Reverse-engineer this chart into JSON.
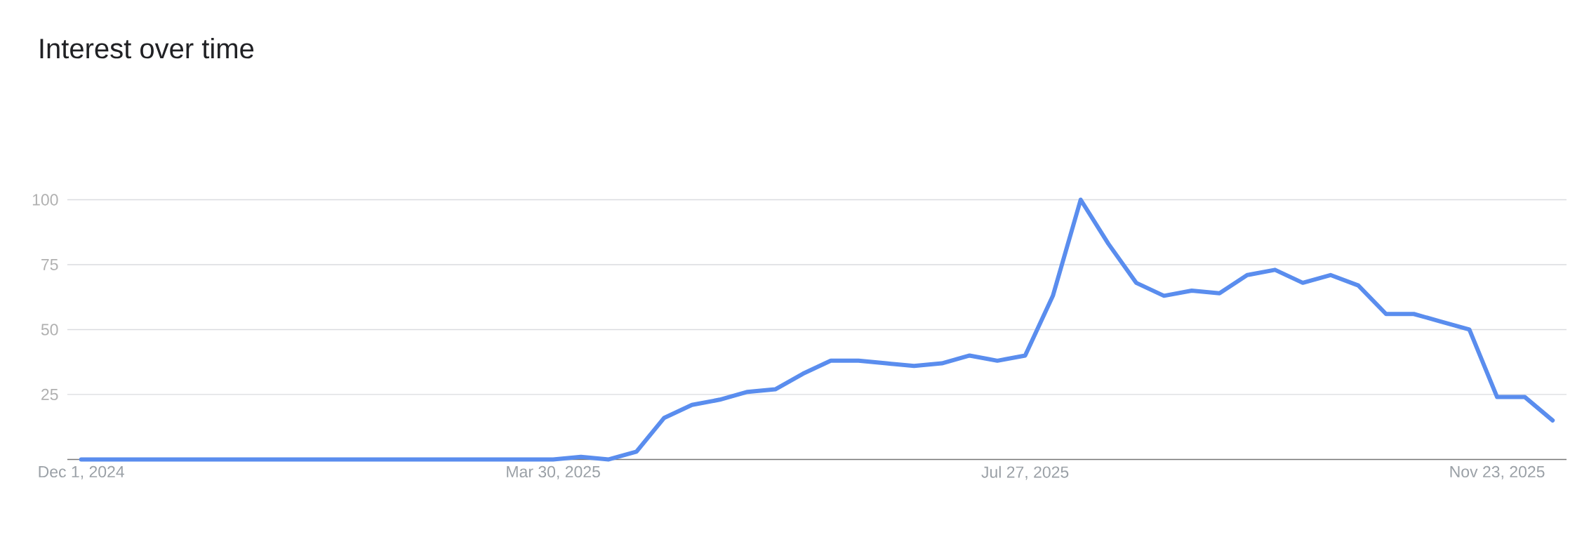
{
  "chart_data": {
    "type": "line",
    "title": "Interest over time",
    "x": [
      "2024-12-01",
      "2024-12-08",
      "2024-12-15",
      "2024-12-22",
      "2024-12-29",
      "2025-01-05",
      "2025-01-12",
      "2025-01-19",
      "2025-01-26",
      "2025-02-02",
      "2025-02-09",
      "2025-02-16",
      "2025-02-23",
      "2025-03-02",
      "2025-03-09",
      "2025-03-16",
      "2025-03-23",
      "2025-03-30",
      "2025-04-06",
      "2025-04-13",
      "2025-04-20",
      "2025-04-27",
      "2025-05-04",
      "2025-05-11",
      "2025-05-18",
      "2025-05-25",
      "2025-06-01",
      "2025-06-08",
      "2025-06-15",
      "2025-06-22",
      "2025-06-29",
      "2025-07-06",
      "2025-07-13",
      "2025-07-20",
      "2025-07-27",
      "2025-08-03",
      "2025-08-10",
      "2025-08-17",
      "2025-08-24",
      "2025-08-31",
      "2025-09-07",
      "2025-09-14",
      "2025-09-21",
      "2025-09-28",
      "2025-10-05",
      "2025-10-12",
      "2025-10-19",
      "2025-10-26",
      "2025-11-02",
      "2025-11-09",
      "2025-11-16",
      "2025-11-23",
      "2025-11-30",
      "2025-12-07"
    ],
    "series": [
      {
        "color": "#5a8dee",
        "values": [
          0,
          0,
          0,
          0,
          0,
          0,
          0,
          0,
          0,
          0,
          0,
          0,
          0,
          0,
          0,
          0,
          0,
          0,
          1,
          0,
          3,
          16,
          21,
          23,
          26,
          27,
          33,
          38,
          38,
          37,
          36,
          37,
          40,
          38,
          40,
          63,
          100,
          83,
          68,
          63,
          65,
          64,
          71,
          73,
          68,
          71,
          67,
          56,
          56,
          53,
          50,
          24,
          24,
          15
        ]
      }
    ],
    "xlim": [
      "2024-11-27T12:00",
      "2025-12-10T12:00"
    ],
    "xticks": [
      {
        "value": "2024-12-01",
        "label": "Dec 1, 2024"
      },
      {
        "value": "2025-03-30",
        "label": "Mar 30, 2025"
      },
      {
        "value": "2025-07-27",
        "label": "Jul 27, 2025"
      },
      {
        "value": "2025-11-23",
        "label": "Nov 23, 2025"
      }
    ],
    "ylim": [
      0,
      100
    ],
    "yticks": [
      25,
      50,
      75,
      100
    ],
    "grid": "y"
  }
}
